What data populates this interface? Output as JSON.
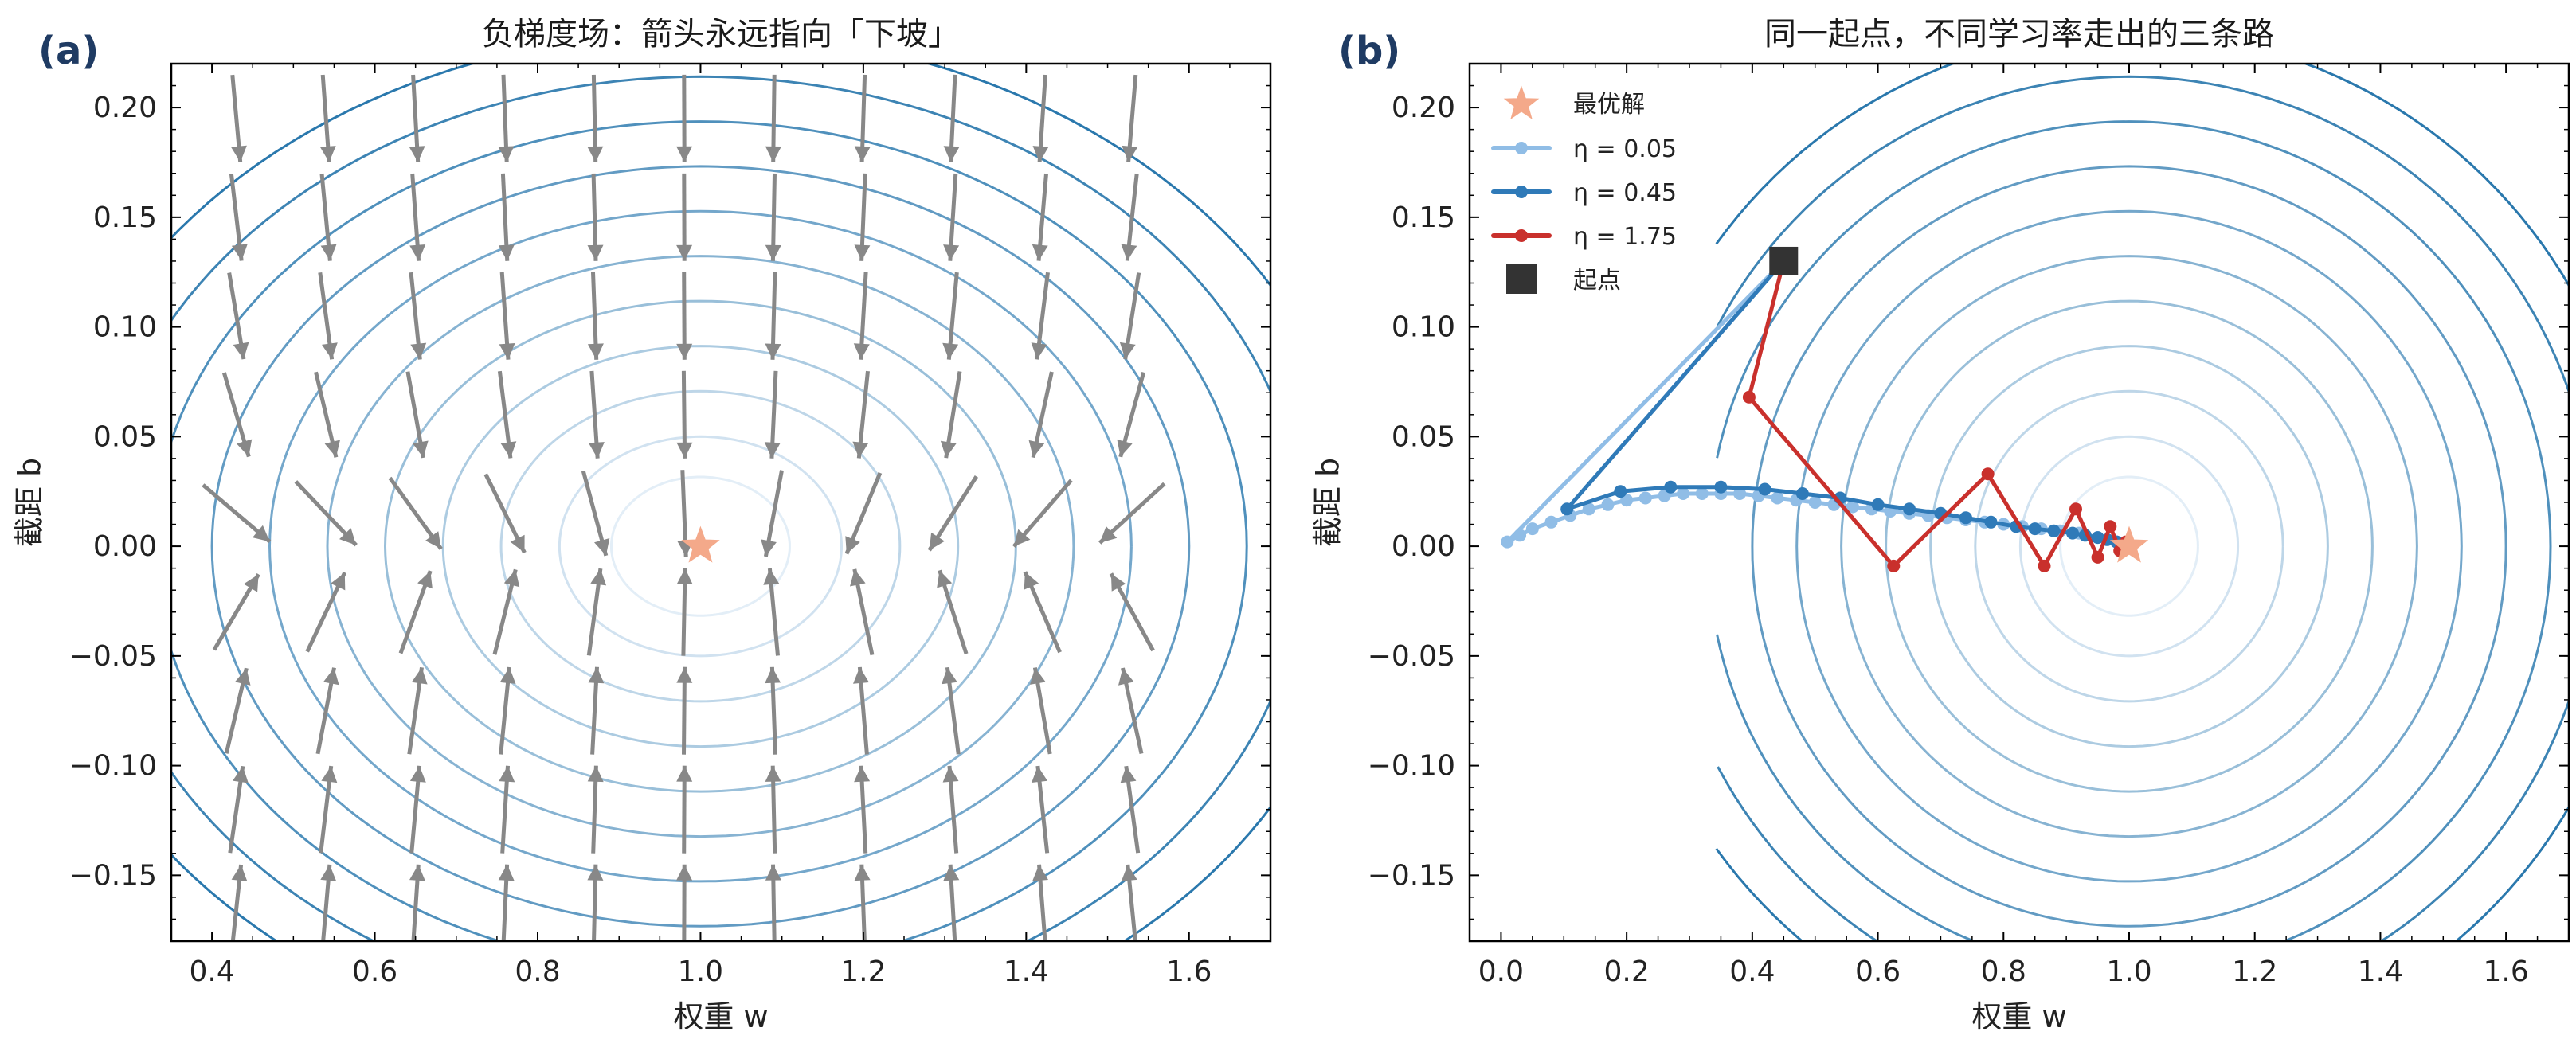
{
  "chart_data": [
    {
      "panel": "(a)",
      "type": "quiver",
      "title": "负梯度场：箭头永远指向「下坡」",
      "xlabel": "权重 w",
      "ylabel": "截距 b",
      "xlim": [
        0.35,
        1.7
      ],
      "ylim": [
        -0.18,
        0.22
      ],
      "xticks": [
        "0.4",
        "0.6",
        "0.8",
        "1.0",
        "1.2",
        "1.4",
        "1.6"
      ],
      "yticks": [
        "−0.15",
        "−0.10",
        "−0.05",
        "0.00",
        "0.05",
        "0.10",
        "0.15",
        "0.20"
      ],
      "optimum": {
        "w": 1.0,
        "b": 0.0
      },
      "loss_scale": {
        "a": 1.0,
        "c": 12.0
      },
      "contour_levels": [
        0.012,
        0.03,
        0.06,
        0.1,
        0.15,
        0.21,
        0.28,
        0.36,
        0.45,
        0.55,
        0.66
      ],
      "arrow_grid": {
        "w": [
          0.43,
          0.54,
          0.65,
          0.76,
          0.87,
          0.98,
          1.09,
          1.2,
          1.31,
          1.42,
          1.53
        ],
        "b": [
          -0.165,
          -0.12,
          -0.075,
          -0.03,
          0.015,
          0.06,
          0.105,
          0.15,
          0.195
        ]
      },
      "grid": false,
      "colors": {
        "arrow": "#888888",
        "optimum": "#f4a98a",
        "contour_light": "#e3eef7",
        "contour_dark": "#2a78ad"
      }
    },
    {
      "panel": "(b)",
      "type": "line",
      "title": "同一起点，不同学习率走出的三条路",
      "xlabel": "权重 w",
      "ylabel": "截距 b",
      "xlim": [
        -0.05,
        1.7
      ],
      "ylim": [
        -0.18,
        0.22
      ],
      "xticks": [
        "0.0",
        "0.2",
        "0.4",
        "0.6",
        "0.8",
        "1.0",
        "1.2",
        "1.4",
        "1.6"
      ],
      "yticks": [
        "−0.15",
        "−0.10",
        "−0.05",
        "0.00",
        "0.05",
        "0.10",
        "0.15",
        "0.20"
      ],
      "optimum": {
        "w": 1.0,
        "b": 0.0
      },
      "start": {
        "w": 0.45,
        "b": 0.13
      },
      "loss_scale": {
        "a": 1.0,
        "c": 12.0
      },
      "contour_levels": [
        0.012,
        0.03,
        0.06,
        0.1,
        0.15,
        0.21,
        0.28,
        0.36,
        0.45,
        0.55,
        0.66
      ],
      "contour_clip_w": 0.34,
      "grid": false,
      "legend": {
        "position": "upper-left",
        "optimum_label": "最优解",
        "start_label": "起点"
      },
      "series": [
        {
          "name": "η = 0.05",
          "color": "#90bde6",
          "points": [
            [
              0.45,
              0.13
            ],
            [
              0.01,
              0.002
            ],
            [
              0.03,
              0.005
            ],
            [
              0.05,
              0.008
            ],
            [
              0.08,
              0.011
            ],
            [
              0.11,
              0.014
            ],
            [
              0.14,
              0.017
            ],
            [
              0.17,
              0.019
            ],
            [
              0.2,
              0.021
            ],
            [
              0.23,
              0.022
            ],
            [
              0.26,
              0.023
            ],
            [
              0.29,
              0.024
            ],
            [
              0.32,
              0.024
            ],
            [
              0.35,
              0.024
            ],
            [
              0.38,
              0.024
            ],
            [
              0.41,
              0.023
            ],
            [
              0.44,
              0.022
            ],
            [
              0.47,
              0.021
            ],
            [
              0.5,
              0.02
            ],
            [
              0.53,
              0.019
            ],
            [
              0.56,
              0.018
            ],
            [
              0.59,
              0.017
            ],
            [
              0.62,
              0.016
            ],
            [
              0.65,
              0.015
            ],
            [
              0.68,
              0.014
            ],
            [
              0.71,
              0.013
            ],
            [
              0.74,
              0.012
            ],
            [
              0.77,
              0.011
            ],
            [
              0.8,
              0.01
            ],
            [
              0.83,
              0.009
            ],
            [
              0.86,
              0.008
            ],
            [
              0.89,
              0.007
            ],
            [
              0.92,
              0.006
            ],
            [
              0.95,
              0.004
            ],
            [
              0.98,
              0.002
            ]
          ]
        },
        {
          "name": "η = 0.45",
          "color": "#2f7ab8",
          "points": [
            [
              0.45,
              0.13
            ],
            [
              0.105,
              0.017
            ],
            [
              0.19,
              0.025
            ],
            [
              0.27,
              0.027
            ],
            [
              0.35,
              0.027
            ],
            [
              0.42,
              0.026
            ],
            [
              0.48,
              0.024
            ],
            [
              0.54,
              0.022
            ],
            [
              0.6,
              0.019
            ],
            [
              0.65,
              0.017
            ],
            [
              0.7,
              0.015
            ],
            [
              0.74,
              0.013
            ],
            [
              0.78,
              0.011
            ],
            [
              0.82,
              0.009
            ],
            [
              0.85,
              0.008
            ],
            [
              0.88,
              0.007
            ],
            [
              0.91,
              0.006
            ],
            [
              0.93,
              0.005
            ],
            [
              0.95,
              0.004
            ],
            [
              0.965,
              0.003
            ],
            [
              0.98,
              0.002
            ]
          ]
        },
        {
          "name": "η = 1.75",
          "color": "#c9302c",
          "points": [
            [
              0.45,
              0.13
            ],
            [
              0.395,
              0.068
            ],
            [
              0.625,
              -0.009
            ],
            [
              0.775,
              0.033
            ],
            [
              0.865,
              -0.009
            ],
            [
              0.915,
              0.017
            ],
            [
              0.95,
              -0.005
            ],
            [
              0.97,
              0.009
            ],
            [
              0.985,
              -0.002
            ],
            [
              0.995,
              0.002
            ]
          ]
        }
      ]
    }
  ]
}
